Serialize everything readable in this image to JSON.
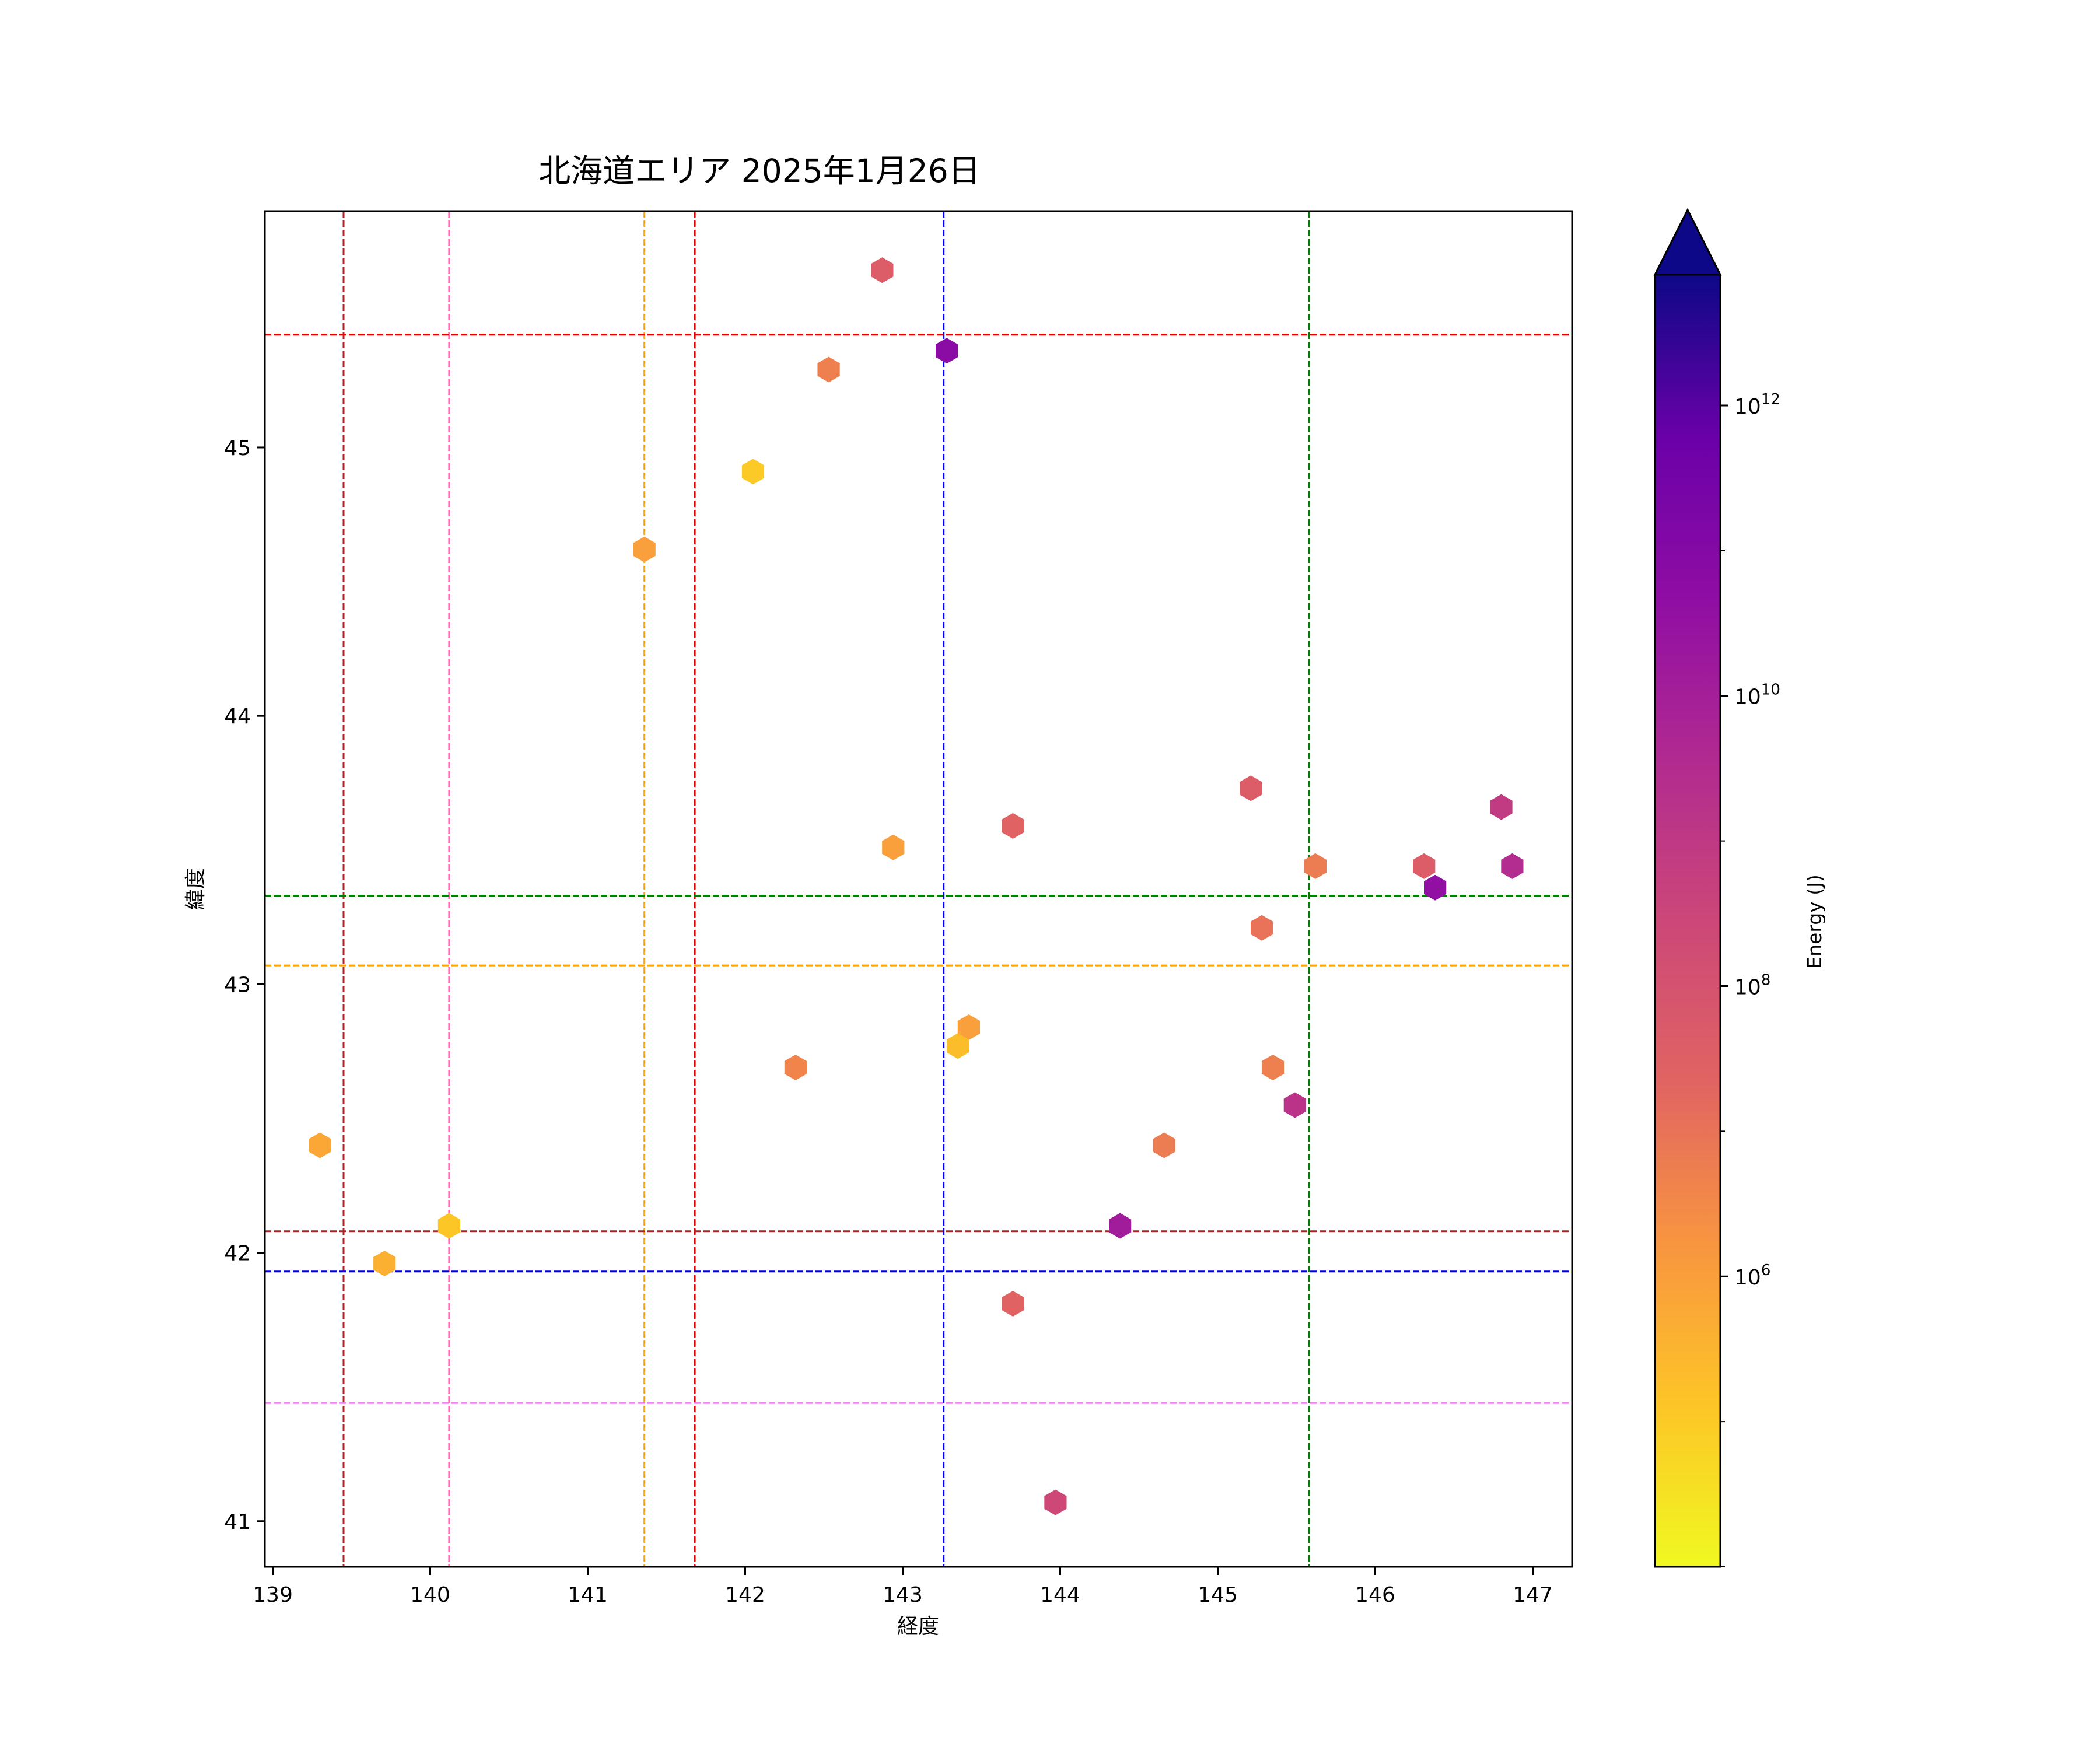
{
  "chart_data": {
    "type": "scatter",
    "marker": "hexagon",
    "title": "北海道エリア 2025年1月26日",
    "xlabel": "経度",
    "ylabel": "緯度",
    "xlim": [
      138.95,
      147.25
    ],
    "ylim": [
      40.83,
      45.88
    ],
    "xticks": [
      "139",
      "140",
      "141",
      "142",
      "143",
      "144",
      "145",
      "146",
      "147"
    ],
    "yticks": [
      "41",
      "42",
      "43",
      "44",
      "45"
    ],
    "grid": false,
    "colorbar": {
      "label": "Energy (J)",
      "scale": "log",
      "colormap": "plasma_r",
      "range_log10": [
        4.0,
        12.9
      ],
      "extend": "max",
      "ticks": [
        {
          "exp": 6,
          "label": "10",
          "sup": "6"
        },
        {
          "exp": 8,
          "label": "10",
          "sup": "8"
        },
        {
          "exp": 10,
          "label": "10",
          "sup": "10"
        },
        {
          "exp": 12,
          "label": "10",
          "sup": "12"
        }
      ],
      "over_color": "#0d0887"
    },
    "reference_lines": {
      "vertical": [
        {
          "x": 139.45,
          "color": "#b22222"
        },
        {
          "x": 140.12,
          "color": "#ff69b4"
        },
        {
          "x": 141.36,
          "color": "#ffa500"
        },
        {
          "x": 141.68,
          "color": "#dd0000"
        },
        {
          "x": 143.26,
          "color": "#0000ee"
        },
        {
          "x": 145.58,
          "color": "#008000"
        }
      ],
      "horizontal": [
        {
          "y": 45.42,
          "color": "#ee0000"
        },
        {
          "y": 43.33,
          "color": "#008000"
        },
        {
          "y": 43.07,
          "color": "#ffa500"
        },
        {
          "y": 42.08,
          "color": "#b22222"
        },
        {
          "y": 41.93,
          "color": "#0000ee"
        },
        {
          "y": 41.44,
          "color": "#ee82ee"
        }
      ]
    },
    "points": [
      {
        "x": 142.87,
        "y": 45.66,
        "log_energy": 7.6
      },
      {
        "x": 143.28,
        "y": 45.36,
        "log_energy": 10.8
      },
      {
        "x": 142.53,
        "y": 45.29,
        "log_energy": 6.7
      },
      {
        "x": 142.05,
        "y": 44.91,
        "log_energy": 5.0
      },
      {
        "x": 141.36,
        "y": 44.62,
        "log_energy": 6.0
      },
      {
        "x": 142.94,
        "y": 43.51,
        "log_energy": 6.0
      },
      {
        "x": 143.7,
        "y": 43.59,
        "log_energy": 7.4
      },
      {
        "x": 145.21,
        "y": 43.73,
        "log_energy": 7.6
      },
      {
        "x": 145.62,
        "y": 43.44,
        "log_energy": 6.8
      },
      {
        "x": 145.28,
        "y": 43.21,
        "log_energy": 7.0
      },
      {
        "x": 146.31,
        "y": 43.44,
        "log_energy": 7.6
      },
      {
        "x": 146.38,
        "y": 43.36,
        "log_energy": 10.6
      },
      {
        "x": 146.8,
        "y": 43.66,
        "log_energy": 8.9
      },
      {
        "x": 146.87,
        "y": 43.44,
        "log_energy": 9.5
      },
      {
        "x": 143.42,
        "y": 42.84,
        "log_energy": 6.0
      },
      {
        "x": 143.35,
        "y": 42.77,
        "log_energy": 5.3
      },
      {
        "x": 142.32,
        "y": 42.69,
        "log_energy": 6.6
      },
      {
        "x": 145.35,
        "y": 42.69,
        "log_energy": 6.7
      },
      {
        "x": 145.49,
        "y": 42.55,
        "log_energy": 9.2
      },
      {
        "x": 144.66,
        "y": 42.4,
        "log_energy": 6.8
      },
      {
        "x": 139.3,
        "y": 42.4,
        "log_energy": 5.8
      },
      {
        "x": 140.12,
        "y": 42.1,
        "log_energy": 5.1
      },
      {
        "x": 139.71,
        "y": 41.96,
        "log_energy": 5.6
      },
      {
        "x": 144.38,
        "y": 42.1,
        "log_energy": 10.1
      },
      {
        "x": 143.7,
        "y": 41.81,
        "log_energy": 7.4
      },
      {
        "x": 143.97,
        "y": 41.07,
        "log_energy": 8.4
      }
    ]
  }
}
